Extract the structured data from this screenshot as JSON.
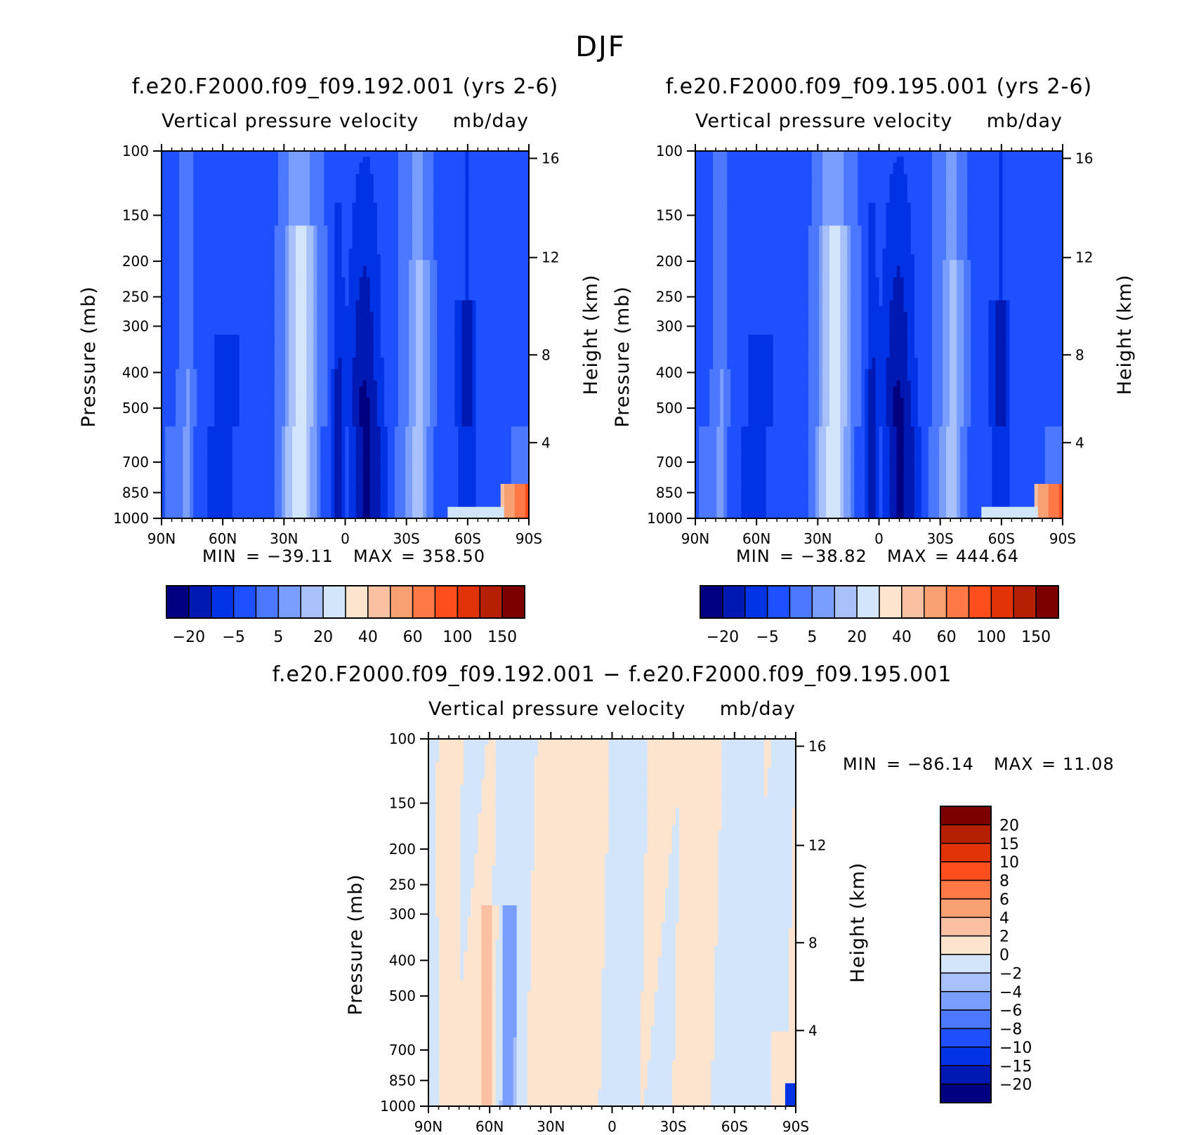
{
  "figure_title": "DJF",
  "colors": {
    "top_scale": [
      "#000080",
      "#0019b3",
      "#0033e6",
      "#1f50ff",
      "#4b78ff",
      "#7a9efe",
      "#a8c1fb",
      "#d3e5fb",
      "#fde4cf",
      "#f9c0a2",
      "#f9a072",
      "#ff7846",
      "#ff4e1e",
      "#e13208",
      "#b42000",
      "#7d0000"
    ],
    "diff_scale": [
      "#000080",
      "#0019b3",
      "#0033e6",
      "#1f50ff",
      "#4b78ff",
      "#7a9efe",
      "#a8c1fb",
      "#d3e5fb",
      "#fde4cf",
      "#f9c0a2",
      "#f9a072",
      "#ff7846",
      "#ff4e1e",
      "#e13208",
      "#b42000",
      "#7d0000"
    ]
  },
  "chart_data": [
    {
      "type": "heatmap",
      "title": "f.e20.F2000.f09_f09.192.001 (yrs 2-6)",
      "subtitle_left": "Vertical pressure velocity",
      "subtitle_right": "mb/day",
      "ylabel": "Pressure (mb)",
      "y2label": "Height (km)",
      "x_ticks": [
        "90N",
        "60N",
        "30N",
        "0",
        "30S",
        "60S",
        "90S"
      ],
      "y_ticks": [
        "100",
        "150",
        "200",
        "250",
        "300",
        "400",
        "500",
        "700",
        "850",
        "1000"
      ],
      "y2_ticks": [
        "16",
        "12",
        "8",
        "4"
      ],
      "stats": {
        "min_label": "MIN",
        "min": "−39.11",
        "max_label": "MAX",
        "max": "358.50"
      },
      "colorbar_labels": [
        "−20",
        "−5",
        "5",
        "20",
        "40",
        "60",
        "100",
        "150"
      ]
    },
    {
      "type": "heatmap",
      "title": "f.e20.F2000.f09_f09.195.001 (yrs 2-6)",
      "subtitle_left": "Vertical pressure velocity",
      "subtitle_right": "mb/day",
      "ylabel": "Pressure (mb)",
      "y2label": "Height (km)",
      "x_ticks": [
        "90N",
        "60N",
        "30N",
        "0",
        "30S",
        "60S",
        "90S"
      ],
      "y_ticks": [
        "100",
        "150",
        "200",
        "250",
        "300",
        "400",
        "500",
        "700",
        "850",
        "1000"
      ],
      "y2_ticks": [
        "16",
        "12",
        "8",
        "4"
      ],
      "stats": {
        "min_label": "MIN",
        "min": "−38.82",
        "max_label": "MAX",
        "max": "444.64"
      },
      "colorbar_labels": [
        "−20",
        "−5",
        "5",
        "20",
        "40",
        "60",
        "100",
        "150"
      ]
    },
    {
      "type": "heatmap",
      "title": "f.e20.F2000.f09_f09.192.001 − f.e20.F2000.f09_f09.195.001",
      "subtitle_left": "Vertical pressure velocity",
      "subtitle_right": "mb/day",
      "ylabel": "Pressure (mb)",
      "y2label": "Height (km)",
      "x_ticks": [
        "90N",
        "60N",
        "30N",
        "0",
        "30S",
        "60S",
        "90S"
      ],
      "y_ticks": [
        "100",
        "150",
        "200",
        "250",
        "300",
        "400",
        "500",
        "700",
        "850",
        "1000"
      ],
      "y2_ticks": [
        "16",
        "12",
        "8",
        "4"
      ],
      "stats": {
        "min_label": "MIN",
        "min": "−86.14",
        "max_label": "MAX",
        "max": "11.08"
      },
      "colorbar_labels": [
        "20",
        "15",
        "10",
        "8",
        "6",
        "4",
        "2",
        "0",
        "−2",
        "−4",
        "−6",
        "−8",
        "−10",
        "−15",
        "−20"
      ]
    }
  ]
}
